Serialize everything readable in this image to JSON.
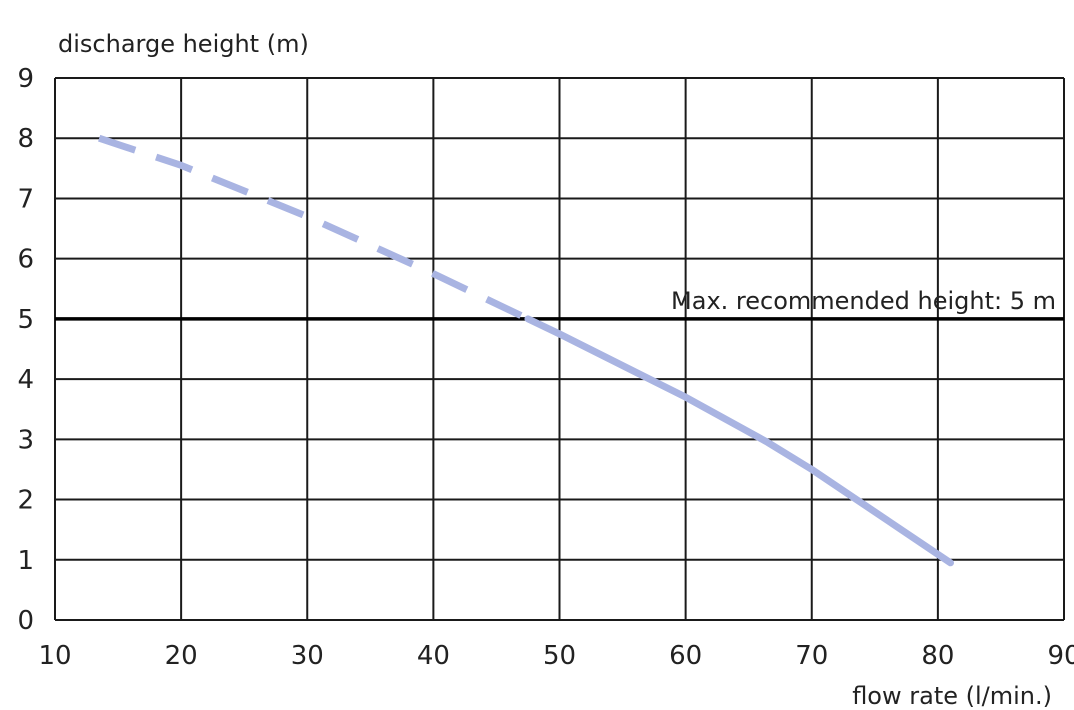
{
  "chart_data": {
    "type": "line",
    "ylabel": "discharge height (m)",
    "xlabel": "flow rate  (l/min.)",
    "xlim": [
      10,
      90
    ],
    "ylim": [
      0,
      9
    ],
    "x_ticks": [
      10,
      20,
      30,
      40,
      50,
      60,
      70,
      80,
      90
    ],
    "y_ticks": [
      0,
      1,
      2,
      3,
      4,
      5,
      6,
      7,
      8,
      9
    ],
    "grid": true,
    "line_color": "#a9b4e2",
    "series": [
      {
        "style": "dashed",
        "x": [
          13.5,
          20,
          30,
          40,
          47.5
        ],
        "y": [
          8.0,
          7.55,
          6.7,
          5.75,
          5.0
        ]
      },
      {
        "style": "solid",
        "x": [
          47.5,
          50,
          60,
          66.5,
          70,
          81
        ],
        "y": [
          5.0,
          4.75,
          3.7,
          2.95,
          2.5,
          0.95
        ]
      }
    ],
    "reference_line": {
      "y": 5,
      "label": "Max. recommended height: 5 m"
    }
  }
}
